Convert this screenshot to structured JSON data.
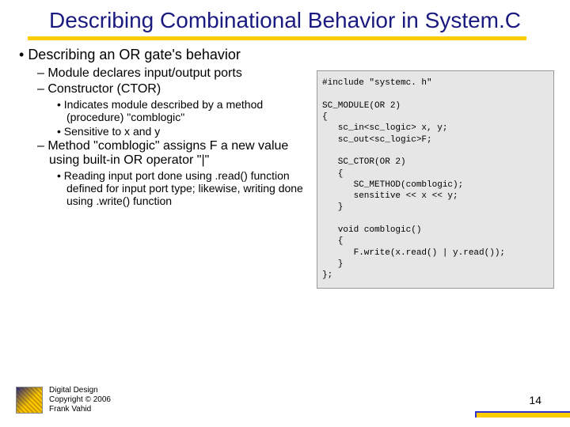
{
  "title": "Describing Combinational Behavior in System.C",
  "bullets": {
    "b1": "Describing an OR gate's behavior",
    "b2a": "Module declares input/output ports",
    "b2b": "Constructor (CTOR)",
    "b3a": "Indicates module described by a method (procedure) \"comblogic\"",
    "b3b": "Sensitive to x and y",
    "b2c": "Method \"comblogic\" assigns F a new value using built-in OR operator \"|\"",
    "b3c": "Reading input port done using .read() function defined for input port type; likewise, writing done using .write() function"
  },
  "code": "#include \"systemc. h\"\n\nSC_MODULE(OR 2)\n{\n   sc_in<sc_logic> x, y;\n   sc_out<sc_logic>F;\n\n   SC_CTOR(OR 2)\n   {\n      SC_METHOD(comblogic);\n      sensitive << x << y;\n   }\n\n   void comblogic()\n   {\n      F.write(x.read() | y.read());\n   }\n};",
  "footer": {
    "line1": "Digital Design",
    "line2": "Copyright © 2006",
    "line3": "Frank Vahid"
  },
  "pageNumber": "14",
  "colors": {
    "title": "#1a1a80",
    "accent": "#ffcc00",
    "codeBg": "#e6e6e6"
  }
}
